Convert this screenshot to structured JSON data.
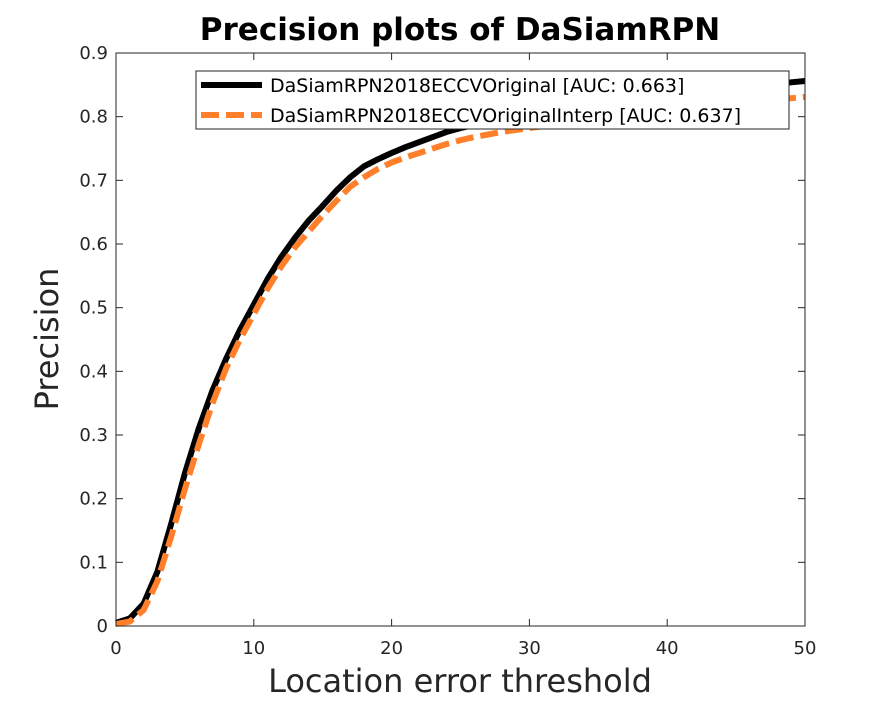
{
  "chart_data": {
    "type": "line",
    "title": "Precision plots of DaSiamRPN",
    "xlabel": "Location error threshold",
    "ylabel": "Precision",
    "xlim": [
      0,
      50
    ],
    "ylim": [
      0,
      0.9
    ],
    "xticks": [
      "0",
      "10",
      "20",
      "30",
      "40",
      "50"
    ],
    "yticks": [
      "0",
      "0.1",
      "0.2",
      "0.3",
      "0.4",
      "0.5",
      "0.6",
      "0.7",
      "0.8",
      "0.9"
    ],
    "grid": false,
    "legend_position": "top-right",
    "x": [
      0,
      1,
      2,
      3,
      4,
      5,
      6,
      7,
      8,
      9,
      10,
      11,
      12,
      13,
      14,
      15,
      16,
      17,
      18,
      19,
      20,
      21,
      22,
      23,
      24,
      25,
      26,
      27,
      28,
      29,
      30,
      31,
      32,
      33,
      34,
      35,
      36,
      37,
      38,
      39,
      40,
      41,
      42,
      43,
      44,
      45,
      46,
      47,
      48,
      49,
      50
    ],
    "series": [
      {
        "name": "DaSiamRPN2018ECCVOriginal [AUC: 0.663]",
        "color": "#000000",
        "style": "solid",
        "values": [
          0.005,
          0.012,
          0.035,
          0.085,
          0.16,
          0.24,
          0.31,
          0.37,
          0.42,
          0.465,
          0.505,
          0.545,
          0.58,
          0.61,
          0.637,
          0.66,
          0.684,
          0.705,
          0.722,
          0.733,
          0.743,
          0.752,
          0.76,
          0.768,
          0.776,
          0.782,
          0.787,
          0.792,
          0.796,
          0.8,
          0.803,
          0.806,
          0.809,
          0.812,
          0.815,
          0.818,
          0.821,
          0.824,
          0.826,
          0.829,
          0.832,
          0.834,
          0.837,
          0.839,
          0.842,
          0.844,
          0.847,
          0.849,
          0.852,
          0.854,
          0.856
        ]
      },
      {
        "name": "DaSiamRPN2018ECCVOriginalInterp [AUC: 0.637]",
        "color": "#ff7f2a",
        "style": "dashed",
        "values": [
          0.003,
          0.007,
          0.025,
          0.07,
          0.14,
          0.215,
          0.285,
          0.35,
          0.405,
          0.45,
          0.49,
          0.53,
          0.565,
          0.595,
          0.62,
          0.645,
          0.668,
          0.69,
          0.705,
          0.718,
          0.728,
          0.736,
          0.743,
          0.75,
          0.757,
          0.763,
          0.768,
          0.772,
          0.776,
          0.779,
          0.782,
          0.785,
          0.788,
          0.791,
          0.794,
          0.797,
          0.8,
          0.802,
          0.805,
          0.807,
          0.81,
          0.812,
          0.815,
          0.817,
          0.819,
          0.821,
          0.823,
          0.825,
          0.827,
          0.829,
          0.831
        ]
      }
    ]
  }
}
